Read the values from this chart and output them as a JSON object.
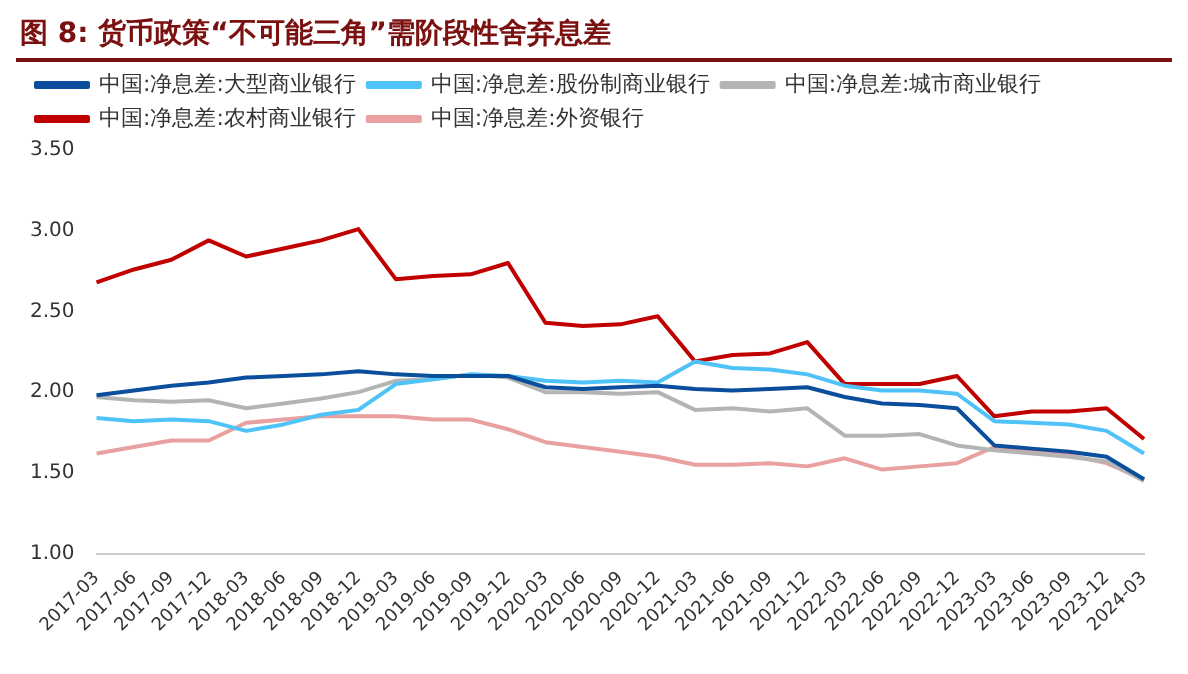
{
  "chart_data": {
    "type": "line",
    "title": "图 8:  货币政策“不可能三角”需阶段性舍弃息差",
    "categories": [
      "2017-03",
      "2017-06",
      "2017-09",
      "2017-12",
      "2018-03",
      "2018-06",
      "2018-09",
      "2018-12",
      "2019-03",
      "2019-06",
      "2019-09",
      "2019-12",
      "2020-03",
      "2020-06",
      "2020-09",
      "2020-12",
      "2021-03",
      "2021-06",
      "2021-09",
      "2021-12",
      "2022-03",
      "2022-06",
      "2022-09",
      "2022-12",
      "2023-03",
      "2023-06",
      "2023-09",
      "2023-12",
      "2024-03"
    ],
    "series": [
      {
        "name": "中国:净息差:大型商业银行",
        "color": "#0b4f9c",
        "values": [
          1.98,
          2.01,
          2.04,
          2.06,
          2.09,
          2.1,
          2.11,
          2.13,
          2.11,
          2.1,
          2.1,
          2.1,
          2.03,
          2.02,
          2.03,
          2.04,
          2.02,
          2.01,
          2.02,
          2.03,
          1.97,
          1.93,
          1.92,
          1.9,
          1.67,
          1.65,
          1.63,
          1.6,
          1.46
        ]
      },
      {
        "name": "中国:净息差:股份制商业银行",
        "color": "#4fc3f7",
        "values": [
          1.84,
          1.82,
          1.83,
          1.82,
          1.76,
          1.8,
          1.86,
          1.89,
          2.05,
          2.08,
          2.11,
          2.1,
          2.07,
          2.06,
          2.07,
          2.06,
          2.19,
          2.15,
          2.14,
          2.11,
          2.04,
          2.01,
          2.01,
          1.99,
          1.82,
          1.81,
          1.8,
          1.76,
          1.62
        ]
      },
      {
        "name": "中国:净息差:城市商业银行",
        "color": "#b4b4b4",
        "values": [
          1.97,
          1.95,
          1.94,
          1.95,
          1.9,
          1.93,
          1.96,
          2.0,
          2.07,
          2.08,
          2.11,
          2.09,
          2.0,
          2.0,
          1.99,
          2.0,
          1.89,
          1.9,
          1.88,
          1.9,
          1.73,
          1.73,
          1.74,
          1.67,
          1.64,
          1.62,
          1.6,
          1.57,
          1.45
        ]
      },
      {
        "name": "中国:净息差:农村商业银行",
        "color": "#c00000",
        "values": [
          2.68,
          2.76,
          2.82,
          2.94,
          2.84,
          2.89,
          2.94,
          3.01,
          2.7,
          2.72,
          2.73,
          2.8,
          2.43,
          2.41,
          2.42,
          2.47,
          2.19,
          2.23,
          2.24,
          2.31,
          2.05,
          2.05,
          2.05,
          2.1,
          1.85,
          1.88,
          1.88,
          1.9,
          1.71
        ]
      },
      {
        "name": "中国:净息差:外资银行",
        "color": "#e8a0a0",
        "values": [
          1.62,
          1.66,
          1.7,
          1.7,
          1.81,
          1.83,
          1.85,
          1.85,
          1.85,
          1.83,
          1.83,
          1.77,
          1.69,
          1.66,
          1.63,
          1.6,
          1.55,
          1.55,
          1.56,
          1.54,
          1.59,
          1.52,
          1.54,
          1.56,
          1.66,
          1.63,
          1.61,
          1.56,
          1.46
        ]
      }
    ],
    "ylim": [
      1,
      3.5
    ],
    "yticks": [
      {
        "value": 1,
        "label": "1.00"
      },
      {
        "value": 1.5,
        "label": "1.50"
      },
      {
        "value": 2,
        "label": "2.00"
      },
      {
        "value": 2.5,
        "label": "2.50"
      },
      {
        "value": 3,
        "label": "3.00"
      },
      {
        "value": 3.5,
        "label": "3.50"
      }
    ],
    "grid": false,
    "legend": "top left",
    "marker": "none",
    "line_style": "solid"
  }
}
